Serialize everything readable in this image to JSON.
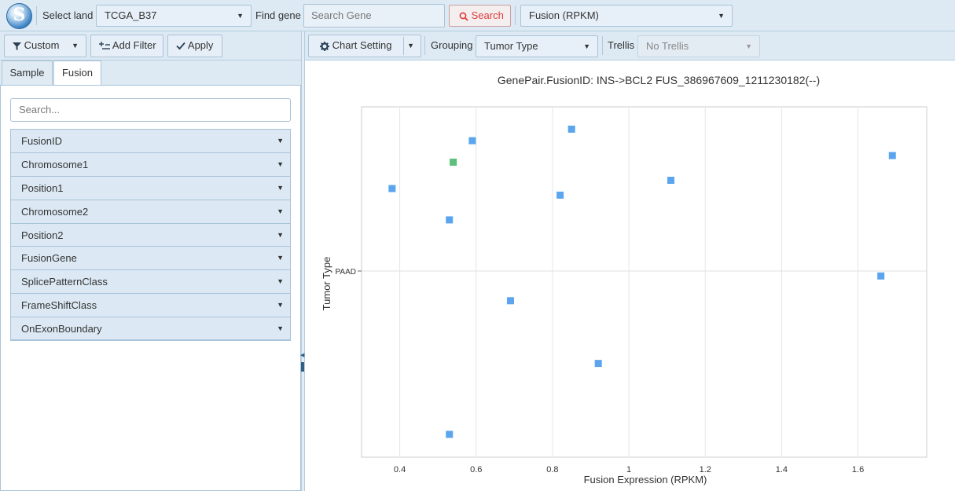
{
  "topbar": {
    "select_land_label": "Select land",
    "land_value": "TCGA_B37",
    "find_gene_label": "Find gene",
    "gene_placeholder": "Search Gene",
    "search_button": "Search",
    "measure_value": "Fusion (RPKM)"
  },
  "left_toolbar": {
    "custom_label": "Custom",
    "add_filter_label": "Add Filter",
    "apply_label": "Apply"
  },
  "tabs": [
    {
      "label": "Sample"
    },
    {
      "label": "Fusion"
    }
  ],
  "filter_search_placeholder": "Search...",
  "filters": [
    {
      "label": "FusionID"
    },
    {
      "label": "Chromosome1"
    },
    {
      "label": "Position1"
    },
    {
      "label": "Chromosome2"
    },
    {
      "label": "Position2"
    },
    {
      "label": "FusionGene"
    },
    {
      "label": "SplicePatternClass"
    },
    {
      "label": "FrameShiftClass"
    },
    {
      "label": "OnExonBoundary"
    }
  ],
  "right_toolbar": {
    "chart_setting_label": "Chart Setting",
    "grouping_label": "Grouping",
    "grouping_value": "Tumor Type",
    "trellis_label": "Trellis",
    "trellis_value": "No Trellis"
  },
  "colors": {
    "toolbar_bg": "#dde9f3",
    "point_blue": "#5aa5ee",
    "point_green": "#5cbf7a",
    "search_red": "#e03b3b"
  },
  "chart_data": {
    "type": "scatter",
    "title": "GenePair.FusionID: INS->BCL2 FUS_386967609_1211230182(--)",
    "xlabel": "Fusion Expression (RPKM)",
    "ylabel": "Tumor Type",
    "xlim": [
      0.3,
      1.78
    ],
    "x_ticks": [
      "0.4",
      "0.6",
      "0.8",
      "1",
      "1.2",
      "1.4",
      "1.6"
    ],
    "x_tick_values": [
      0.4,
      0.6,
      0.8,
      1.0,
      1.2,
      1.4,
      1.6
    ],
    "categories": [
      "PAAD"
    ],
    "grid": true,
    "points": [
      {
        "x": 0.85,
        "jitter": 0.86,
        "color": "blue"
      },
      {
        "x": 0.59,
        "jitter": 0.79,
        "color": "blue"
      },
      {
        "x": 1.69,
        "jitter": 0.7,
        "color": "blue"
      },
      {
        "x": 0.54,
        "jitter": 0.66,
        "color": "green"
      },
      {
        "x": 1.11,
        "jitter": 0.55,
        "color": "blue"
      },
      {
        "x": 0.38,
        "jitter": 0.5,
        "color": "blue"
      },
      {
        "x": 0.82,
        "jitter": 0.46,
        "color": "blue"
      },
      {
        "x": 0.53,
        "jitter": 0.31,
        "color": "blue"
      },
      {
        "x": 1.66,
        "jitter": -0.03,
        "color": "blue"
      },
      {
        "x": 0.69,
        "jitter": -0.18,
        "color": "blue"
      },
      {
        "x": 0.92,
        "jitter": -0.56,
        "color": "blue"
      },
      {
        "x": 0.53,
        "jitter": -0.99,
        "color": "blue"
      }
    ]
  }
}
